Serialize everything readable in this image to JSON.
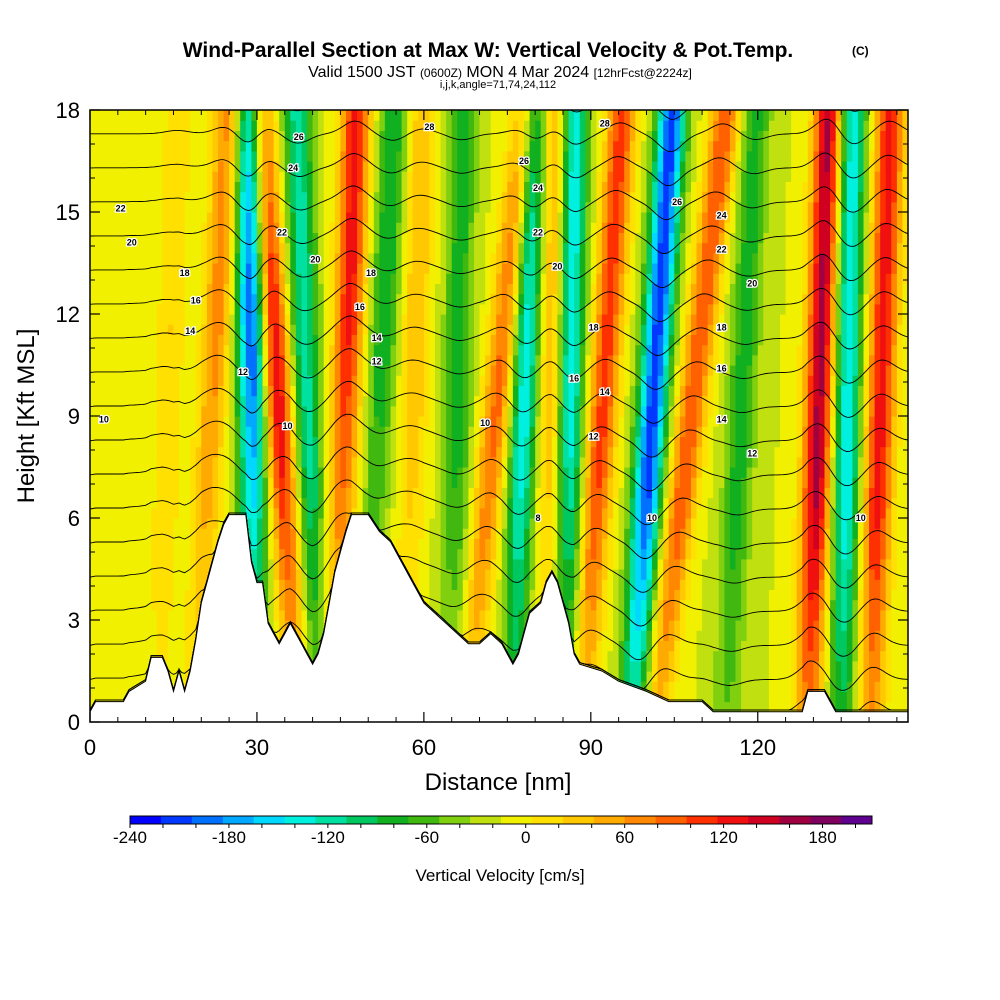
{
  "chart_data": {
    "type": "heatmap",
    "title": "Wind-Parallel Section at Max W: Vertical Velocity & Pot.Temp.",
    "title_mark": "(C)",
    "subtitle": {
      "valid_prefix": "Valid 1500 JST",
      "utc": "(0600Z)",
      "date": "MON 4 Mar 2024",
      "forecast": "[12hrFcst@2224z]"
    },
    "indices_line": "i,j,k,angle=71,74,24,112",
    "xlabel": "Distance [nm]",
    "ylabel": "Height [Kft MSL]",
    "xlim": [
      0,
      147
    ],
    "ylim": [
      0,
      18
    ],
    "x_ticks": [
      0,
      30,
      60,
      90,
      120
    ],
    "y_ticks": [
      0,
      3,
      6,
      9,
      12,
      15,
      18
    ],
    "colorbar": {
      "label": "Vertical Velocity [cm/s]",
      "tick_labels": [
        "-240",
        "-180",
        "-120",
        "-60",
        "0",
        "60",
        "120",
        "180"
      ],
      "range": [
        -240,
        210
      ],
      "step": 20,
      "colors": [
        "#0000ff",
        "#0038ff",
        "#0070ff",
        "#00a8ff",
        "#00d8ff",
        "#00f0e0",
        "#00e0a0",
        "#00c860",
        "#10b020",
        "#40b810",
        "#80d010",
        "#c0e010",
        "#f0f000",
        "#ffe000",
        "#ffc800",
        "#ffaa00",
        "#ff8800",
        "#ff6000",
        "#ff3000",
        "#f01010",
        "#d00020",
        "#a00040",
        "#800060",
        "#600090"
      ]
    },
    "w_field_description": "filled vertical velocity (cm/s) with alternating up/down bands tilted with height over terrain",
    "w_bands": [
      {
        "x": 14,
        "w": 40,
        "tilt": 0.2
      },
      {
        "x": 22,
        "w": 90,
        "tilt": 0.3
      },
      {
        "x": 29,
        "w": -210,
        "tilt": 0.0
      },
      {
        "x": 34,
        "w": 160,
        "tilt": -0.4
      },
      {
        "x": 39,
        "w": -110,
        "tilt": -0.2
      },
      {
        "x": 46,
        "w": 150,
        "tilt": 0.2
      },
      {
        "x": 52,
        "w": -80,
        "tilt": 0.3
      },
      {
        "x": 58,
        "w": 60,
        "tilt": 0.2
      },
      {
        "x": 66,
        "w": -70,
        "tilt": 0.1
      },
      {
        "x": 73,
        "w": 110,
        "tilt": 0.6
      },
      {
        "x": 78,
        "w": -140,
        "tilt": 0.2
      },
      {
        "x": 83,
        "w": 90,
        "tilt": 0.1
      },
      {
        "x": 86,
        "w": -150,
        "tilt": 0.1
      },
      {
        "x": 92,
        "w": 130,
        "tilt": 0.4
      },
      {
        "x": 101,
        "w": -210,
        "tilt": 0.4
      },
      {
        "x": 108,
        "w": 120,
        "tilt": 0.7
      },
      {
        "x": 117,
        "w": -70,
        "tilt": 0.3
      },
      {
        "x": 131,
        "w": 190,
        "tilt": 0.2
      },
      {
        "x": 136,
        "w": -140,
        "tilt": 0.1
      },
      {
        "x": 142,
        "w": 150,
        "tilt": 0.2
      }
    ],
    "terrain_kft": [
      [
        0,
        0.3
      ],
      [
        1,
        0.6
      ],
      [
        6,
        0.6
      ],
      [
        7,
        0.9
      ],
      [
        10,
        1.2
      ],
      [
        11,
        1.9
      ],
      [
        13,
        1.9
      ],
      [
        14,
        1.5
      ],
      [
        15,
        0.9
      ],
      [
        16,
        1.5
      ],
      [
        17,
        0.9
      ],
      [
        18,
        1.5
      ],
      [
        19,
        2.4
      ],
      [
        20,
        3.5
      ],
      [
        21,
        4.1
      ],
      [
        22,
        4.7
      ],
      [
        23,
        5.3
      ],
      [
        24,
        5.8
      ],
      [
        25,
        6.1
      ],
      [
        28,
        6.1
      ],
      [
        29,
        4.7
      ],
      [
        30,
        4.1
      ],
      [
        31,
        4.1
      ],
      [
        32,
        2.9
      ],
      [
        33,
        2.6
      ],
      [
        34,
        2.3
      ],
      [
        35,
        2.6
      ],
      [
        36,
        2.9
      ],
      [
        37,
        2.6
      ],
      [
        38,
        2.3
      ],
      [
        39,
        2.0
      ],
      [
        40,
        1.7
      ],
      [
        41,
        2.0
      ],
      [
        42,
        2.6
      ],
      [
        43,
        3.5
      ],
      [
        44,
        4.4
      ],
      [
        45,
        5.0
      ],
      [
        46,
        5.6
      ],
      [
        47,
        6.1
      ],
      [
        50,
        6.1
      ],
      [
        52,
        5.6
      ],
      [
        54,
        5.3
      ],
      [
        56,
        4.7
      ],
      [
        58,
        4.1
      ],
      [
        60,
        3.5
      ],
      [
        62,
        3.2
      ],
      [
        64,
        2.9
      ],
      [
        66,
        2.6
      ],
      [
        68,
        2.3
      ],
      [
        70,
        2.3
      ],
      [
        72,
        2.6
      ],
      [
        74,
        2.3
      ],
      [
        75,
        2.0
      ],
      [
        76,
        1.7
      ],
      [
        77,
        2.0
      ],
      [
        78,
        2.6
      ],
      [
        79,
        3.2
      ],
      [
        81,
        3.5
      ],
      [
        82,
        4.1
      ],
      [
        83,
        4.4
      ],
      [
        84,
        4.1
      ],
      [
        85,
        3.5
      ],
      [
        86,
        2.9
      ],
      [
        87,
        2.0
      ],
      [
        88,
        1.7
      ],
      [
        92,
        1.5
      ],
      [
        95,
        1.2
      ],
      [
        100,
        0.9
      ],
      [
        104,
        0.6
      ],
      [
        110,
        0.6
      ],
      [
        112,
        0.3
      ],
      [
        128,
        0.3
      ],
      [
        129,
        0.9
      ],
      [
        132,
        0.9
      ],
      [
        133,
        0.6
      ],
      [
        134,
        0.3
      ],
      [
        147,
        0.3
      ]
    ],
    "theta_lines": [
      {
        "level": 8,
        "label": "8"
      },
      {
        "level": 10,
        "label": "10"
      },
      {
        "level": 12,
        "label": "12"
      },
      {
        "level": 14,
        "label": "14"
      },
      {
        "level": 16,
        "label": "16"
      },
      {
        "level": 18,
        "label": "18"
      },
      {
        "level": 20,
        "label": "20"
      },
      {
        "level": 22,
        "label": "22"
      },
      {
        "level": 24,
        "label": "24"
      },
      {
        "level": 26,
        "label": "26"
      },
      {
        "level": 28,
        "label": "28"
      }
    ],
    "contour_labels": [
      {
        "text": "22",
        "x": 5.5,
        "y": 15.1
      },
      {
        "text": "20",
        "x": 7.5,
        "y": 14.1
      },
      {
        "text": "18",
        "x": 17,
        "y": 13.2
      },
      {
        "text": "16",
        "x": 19,
        "y": 12.4
      },
      {
        "text": "14",
        "x": 18,
        "y": 11.5
      },
      {
        "text": "10",
        "x": 2.5,
        "y": 8.9
      },
      {
        "text": "12",
        "x": 27.5,
        "y": 10.3
      },
      {
        "text": "10",
        "x": 35.5,
        "y": 8.7
      },
      {
        "text": "26",
        "x": 37.5,
        "y": 17.2
      },
      {
        "text": "24",
        "x": 36.5,
        "y": 16.3
      },
      {
        "text": "22",
        "x": 34.5,
        "y": 14.4
      },
      {
        "text": "20",
        "x": 40.5,
        "y": 13.6
      },
      {
        "text": "18",
        "x": 50.5,
        "y": 13.2
      },
      {
        "text": "16",
        "x": 48.5,
        "y": 12.2
      },
      {
        "text": "14",
        "x": 51.5,
        "y": 11.3
      },
      {
        "text": "12",
        "x": 51.5,
        "y": 10.6
      },
      {
        "text": "28",
        "x": 61,
        "y": 17.5
      },
      {
        "text": "10",
        "x": 71,
        "y": 8.8
      },
      {
        "text": "26",
        "x": 78,
        "y": 16.5
      },
      {
        "text": "24",
        "x": 80.5,
        "y": 15.7
      },
      {
        "text": "22",
        "x": 80.5,
        "y": 14.4
      },
      {
        "text": "20",
        "x": 84,
        "y": 13.4
      },
      {
        "text": "8",
        "x": 80.5,
        "y": 6.0
      },
      {
        "text": "18",
        "x": 90.5,
        "y": 11.6
      },
      {
        "text": "16",
        "x": 87,
        "y": 10.1
      },
      {
        "text": "14",
        "x": 92.5,
        "y": 9.7
      },
      {
        "text": "12",
        "x": 90.5,
        "y": 8.4
      },
      {
        "text": "28",
        "x": 92.5,
        "y": 17.6
      },
      {
        "text": "26",
        "x": 105.5,
        "y": 15.3
      },
      {
        "text": "24",
        "x": 113.5,
        "y": 14.9
      },
      {
        "text": "22",
        "x": 113.5,
        "y": 13.9
      },
      {
        "text": "20",
        "x": 119,
        "y": 12.9
      },
      {
        "text": "18",
        "x": 113.5,
        "y": 11.6
      },
      {
        "text": "16",
        "x": 113.5,
        "y": 10.4
      },
      {
        "text": "14",
        "x": 113.5,
        "y": 8.9
      },
      {
        "text": "12",
        "x": 119,
        "y": 7.9
      },
      {
        "text": "10",
        "x": 101,
        "y": 6.0
      },
      {
        "text": "10",
        "x": 138.5,
        "y": 6.0
      }
    ]
  }
}
